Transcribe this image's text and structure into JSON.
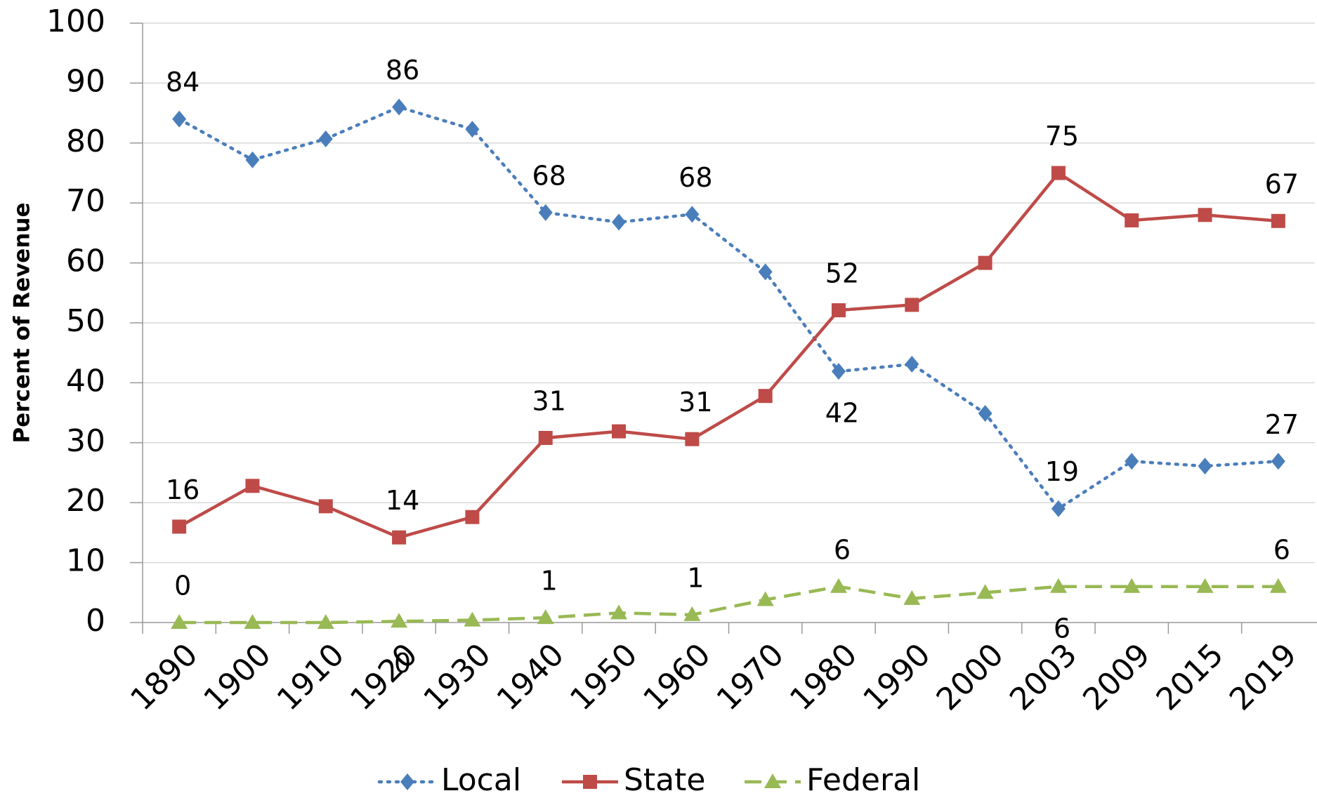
{
  "chart_data": {
    "type": "line",
    "y_label": "Percent of Revenue",
    "categories": [
      "1890",
      "1900",
      "1910",
      "1920",
      "1930",
      "1940",
      "1950",
      "1960",
      "1970",
      "1980",
      "1990",
      "2000",
      "2003",
      "2009",
      "2015",
      "2019"
    ],
    "series": [
      {
        "name": "Local",
        "color": "#4a7ebb",
        "marker": "diamond",
        "dash": "dotted",
        "values": [
          84,
          77.2,
          80.7,
          86,
          82.3,
          68.4,
          66.8,
          68.1,
          58.5,
          41.9,
          43.1,
          34.9,
          19,
          26.9,
          26.1,
          26.9
        ],
        "value_labels": [
          "84",
          null,
          null,
          "86",
          null,
          "68",
          null,
          "68",
          null,
          "42",
          null,
          null,
          "19",
          null,
          null,
          "27"
        ]
      },
      {
        "name": "State",
        "color": "#be4b48",
        "marker": "square",
        "dash": "solid",
        "values": [
          16,
          22.8,
          19.4,
          14.2,
          17.6,
          30.8,
          31.9,
          30.6,
          37.8,
          52.1,
          53,
          60,
          75,
          67.1,
          68,
          67
        ],
        "value_labels": [
          "16",
          null,
          null,
          "14",
          null,
          "31",
          null,
          "31",
          null,
          "52",
          null,
          null,
          "75",
          null,
          null,
          "67"
        ]
      },
      {
        "name": "Federal",
        "color": "#98b954",
        "marker": "triangle",
        "dash": "dashed",
        "values": [
          0,
          0,
          0,
          0.2,
          0.4,
          0.8,
          1.6,
          1.3,
          3.8,
          6,
          4,
          5,
          6,
          6,
          6,
          6
        ],
        "value_labels": [
          "0",
          null,
          null,
          "0",
          null,
          "1",
          null,
          "1",
          null,
          "6",
          null,
          null,
          "6",
          null,
          null,
          "6"
        ]
      }
    ],
    "ylim": [
      0,
      100
    ],
    "yticks": [
      0,
      10,
      20,
      30,
      40,
      50,
      60,
      70,
      80,
      90,
      100
    ],
    "grid": true,
    "legend": "bottom"
  }
}
